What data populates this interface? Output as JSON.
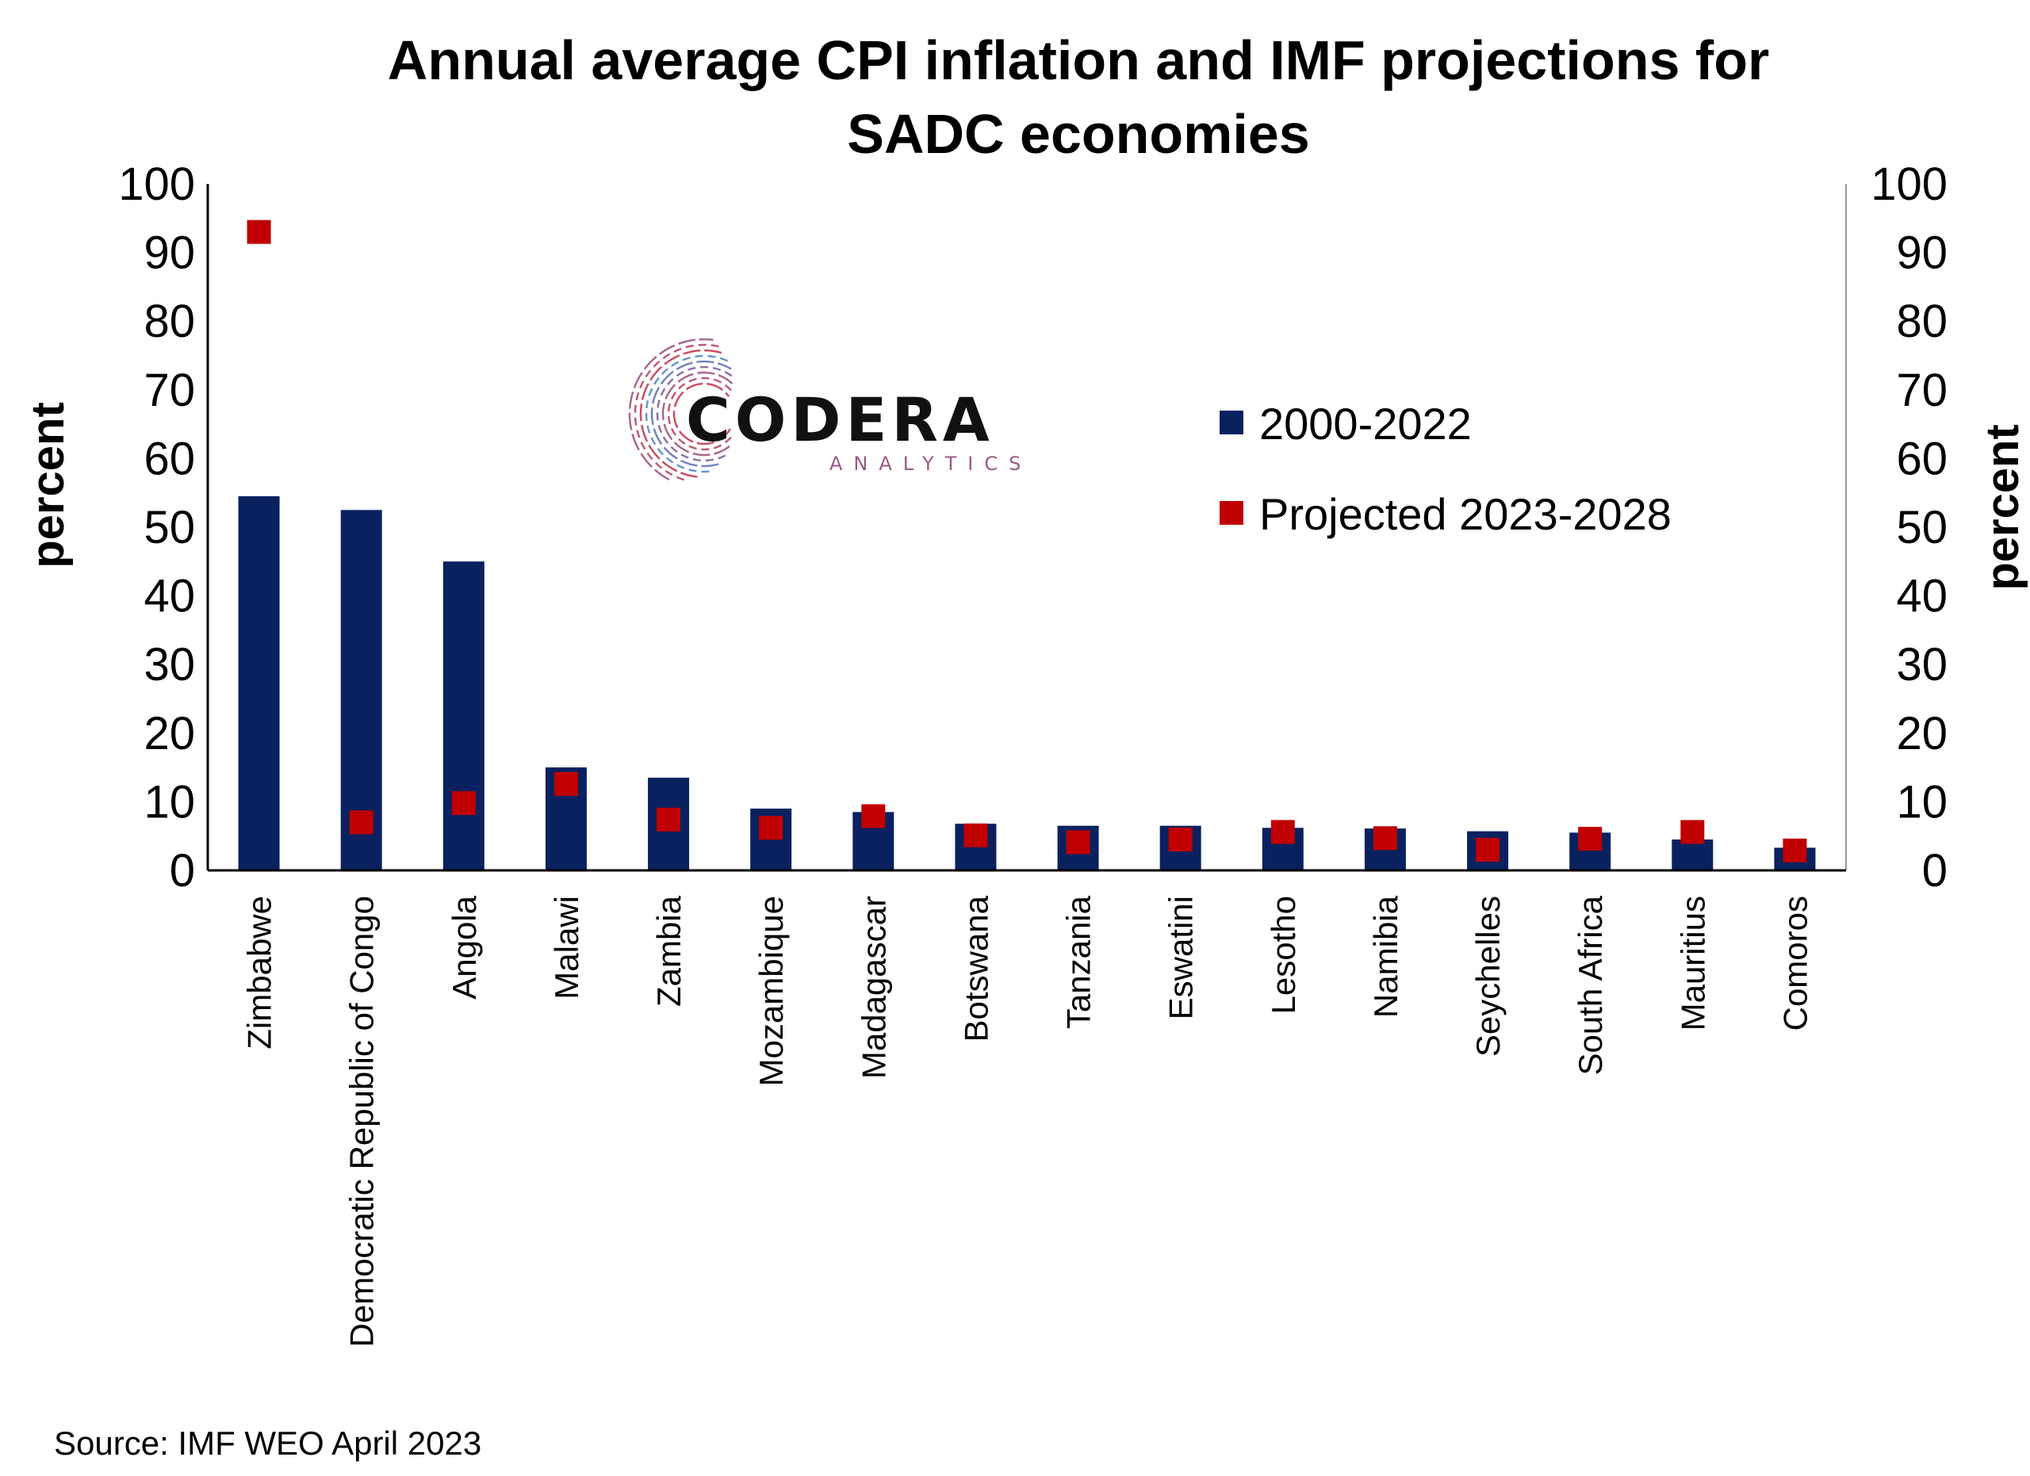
{
  "chart_data": {
    "type": "bar",
    "title_line1": "Annual average CPI inflation and IMF projections for",
    "title_line2": "SADC economies",
    "ylabel_left": "percent",
    "ylabel_right": "percent",
    "ylim": [
      0,
      100
    ],
    "yticks": [
      0,
      10,
      20,
      30,
      40,
      50,
      60,
      70,
      80,
      90,
      100
    ],
    "categories": [
      "Zimbabwe",
      "Democratic Republic of Congo",
      "Angola",
      "Malawi",
      "Zambia",
      "Mozambique",
      "Madagascar",
      "Botswana",
      "Tanzania",
      "Eswatini",
      "Lesotho",
      "Namibia",
      "Seychelles",
      "South Africa",
      "Mauritius",
      "Comoros"
    ],
    "series": [
      {
        "name": "2000-2022",
        "type": "bar",
        "color": "#0a2160",
        "values": [
          54.5,
          52.5,
          45.0,
          15.0,
          13.5,
          9.0,
          8.5,
          6.8,
          6.5,
          6.5,
          6.2,
          6.1,
          5.7,
          5.5,
          4.5,
          3.3
        ]
      },
      {
        "name": "Projected 2023-2028",
        "type": "marker",
        "color": "#c00000",
        "values": [
          93.0,
          7.0,
          9.8,
          12.6,
          7.4,
          6.2,
          7.9,
          5.1,
          4.1,
          4.5,
          5.6,
          4.7,
          3.0,
          4.6,
          5.6,
          2.9
        ]
      }
    ],
    "legend_position": "upper-right (inside plot)",
    "grid": false
  },
  "logo": {
    "main": "CODERA",
    "sub": "ANALYTICS"
  },
  "source": "Source: IMF WEO April 2023"
}
